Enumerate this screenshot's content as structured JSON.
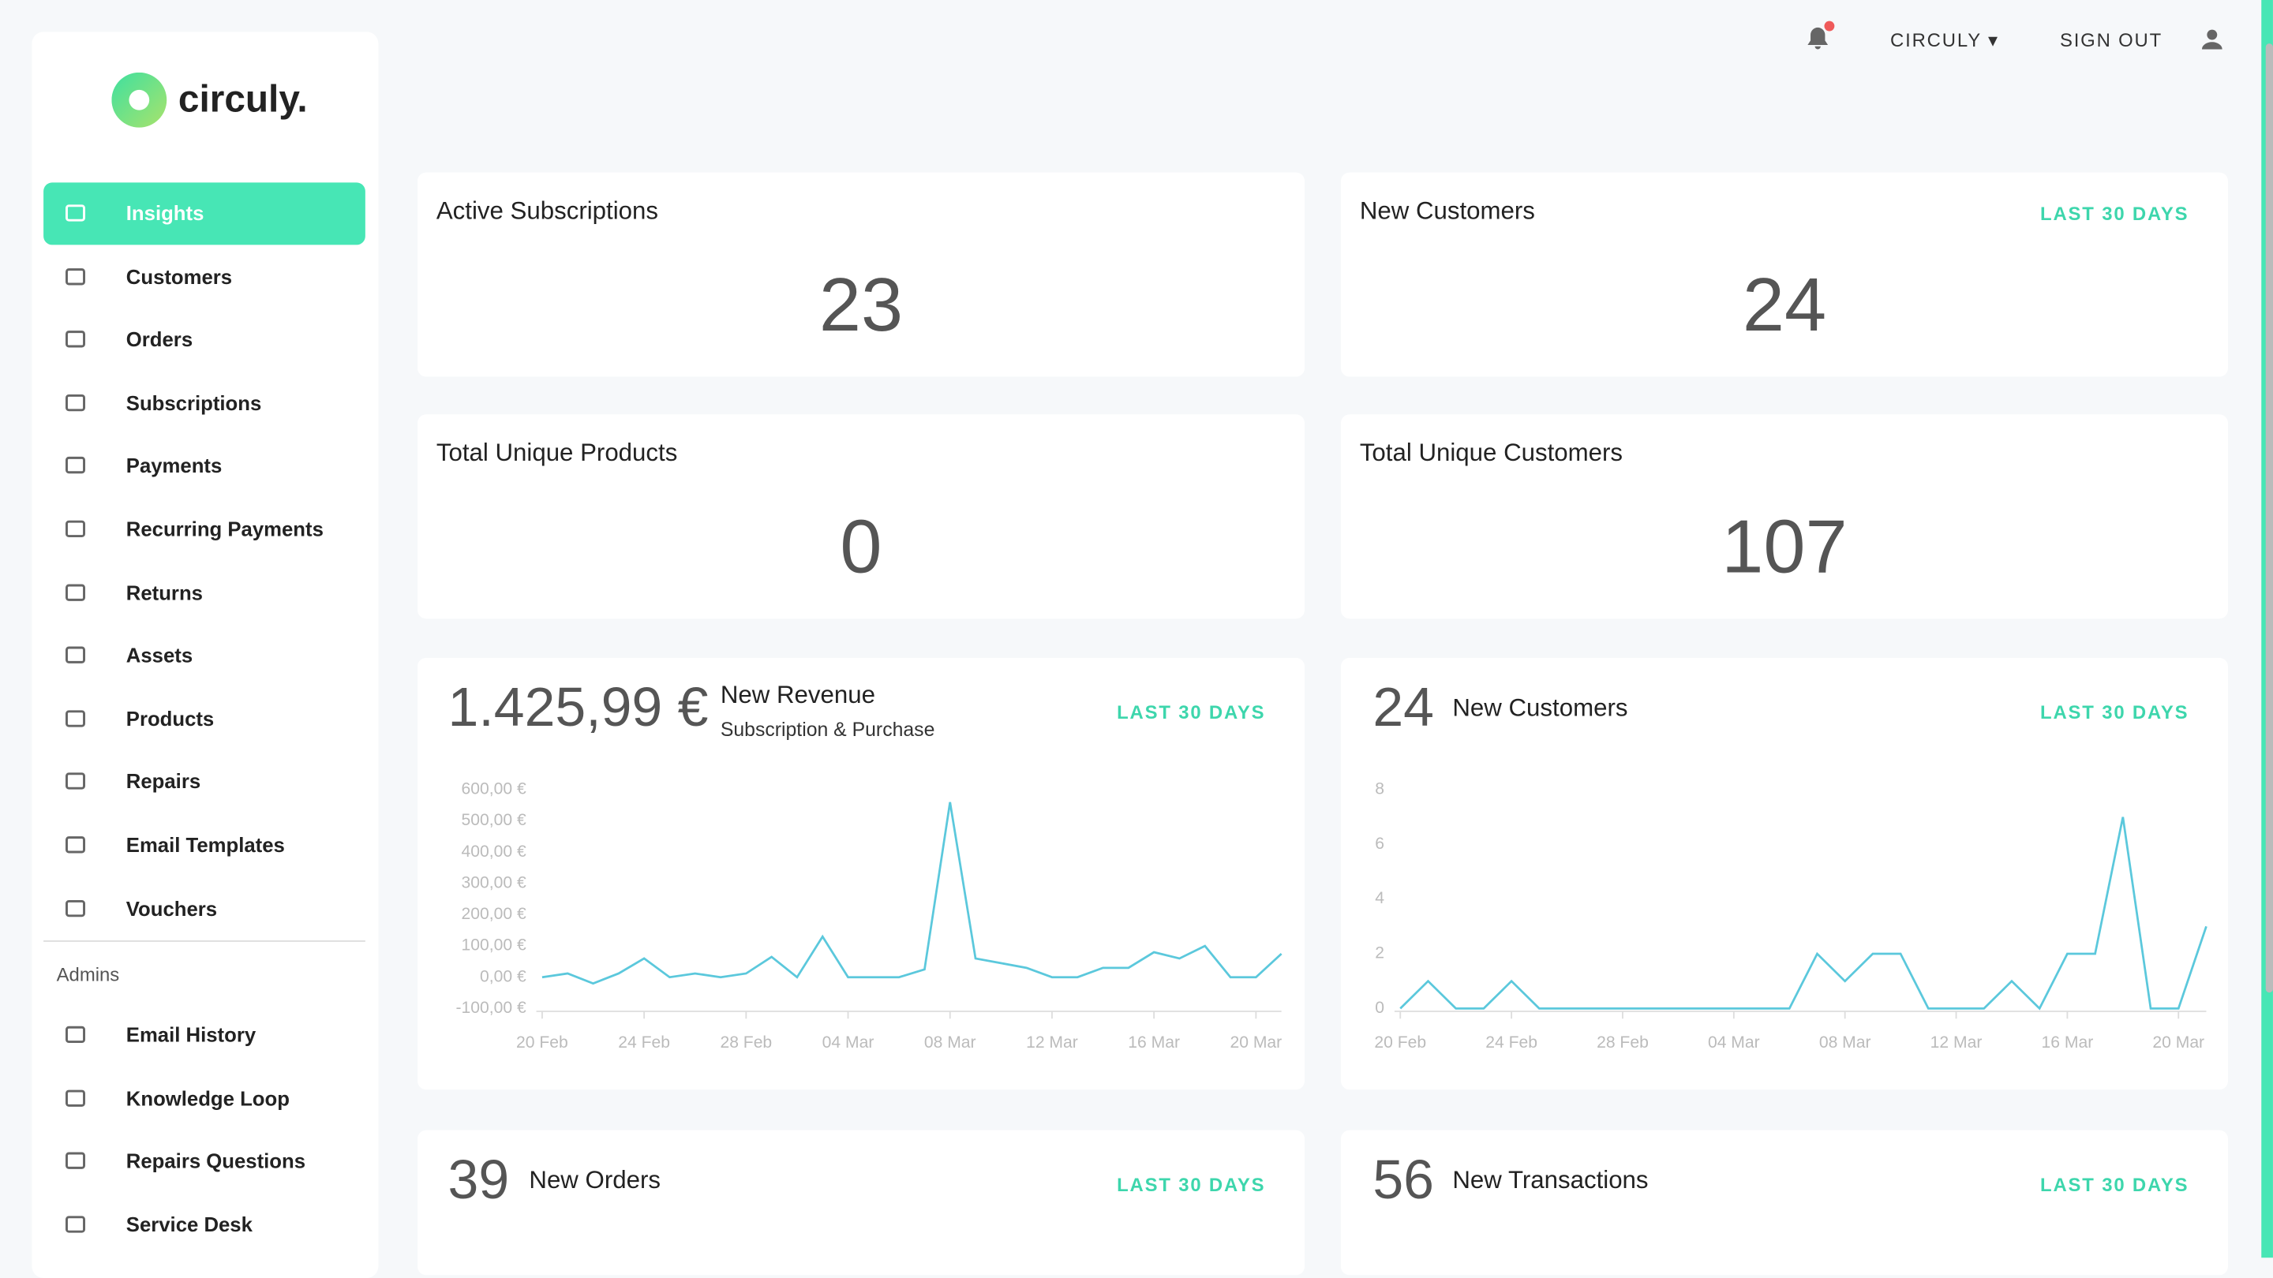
{
  "header": {
    "brand": "CIRCULY",
    "sign_out": "SIGN OUT"
  },
  "sidebar": {
    "logo": "circuly.",
    "nav": [
      "Insights",
      "Customers",
      "Orders",
      "Subscriptions",
      "Payments",
      "Recurring Payments",
      "Returns",
      "Assets",
      "Products",
      "Repairs",
      "Email Templates",
      "Vouchers"
    ],
    "admins_label": "Admins",
    "admin_nav": [
      "Email History",
      "Knowledge Loop",
      "Repairs Questions",
      "Service Desk"
    ]
  },
  "cards": [
    {
      "title": "Active Subscriptions",
      "value": 23
    },
    {
      "title": "New Customers",
      "badge": "LAST 30 DAYS",
      "value": 24
    },
    {
      "title": "Total Unique Products",
      "value": 0
    },
    {
      "title": "Total Unique Customers",
      "value": 107
    }
  ],
  "chart_cards": [
    {
      "stat": "1.425,99 €",
      "title": "New Revenue",
      "subtitle": "Subscription & Purchase",
      "badge": "LAST 30 DAYS"
    },
    {
      "stat": 24,
      "title": "New Customers",
      "badge": "LAST 30 DAYS"
    },
    {
      "stat": 39,
      "title": "New Orders",
      "badge": "LAST 30 DAYS"
    },
    {
      "stat": 56,
      "title": "New Transactions",
      "badge": "LAST 30 DAYS"
    }
  ],
  "chart_data": [
    {
      "type": "line",
      "categories": [
        "20 Feb",
        null,
        null,
        null,
        "24 Feb",
        null,
        null,
        null,
        "28 Feb",
        null,
        null,
        null,
        "04 Mar",
        null,
        null,
        null,
        "08 Mar",
        null,
        null,
        null,
        "12 Mar",
        null,
        null,
        null,
        "16 Mar",
        null,
        null,
        null,
        "20 Mar",
        null
      ],
      "series": [
        {
          "name": "New Revenue",
          "color": "#5bc8dc",
          "values": [
            0,
            12,
            -20,
            12,
            60,
            0,
            12,
            0,
            12,
            65,
            0,
            130,
            0,
            0,
            0,
            25,
            560,
            60,
            45,
            30,
            0,
            0,
            30,
            30,
            80,
            60,
            100,
            0,
            0,
            75
          ]
        }
      ],
      "ylim": [
        -100,
        600
      ],
      "yticks": [
        {
          "value": -100,
          "label": "-100,00 €"
        },
        {
          "value": 0,
          "label": "0,00 €"
        },
        {
          "value": 100,
          "label": "100,00 €"
        },
        {
          "value": 200,
          "label": "200,00 €"
        },
        {
          "value": 300,
          "label": "300,00 €"
        },
        {
          "value": 400,
          "label": "400,00 €"
        },
        {
          "value": 500,
          "label": "500,00 €"
        },
        {
          "value": 600,
          "label": "600,00 €"
        }
      ]
    },
    {
      "type": "line",
      "categories": [
        "20 Feb",
        null,
        null,
        null,
        "24 Feb",
        null,
        null,
        null,
        "28 Feb",
        null,
        null,
        null,
        "04 Mar",
        null,
        null,
        null,
        "08 Mar",
        null,
        null,
        null,
        "12 Mar",
        null,
        null,
        null,
        "16 Mar",
        null,
        null,
        null,
        "20 Mar",
        null
      ],
      "series": [
        {
          "name": "New Customers",
          "color": "#5bc8dc",
          "values": [
            0,
            1,
            0,
            0,
            1,
            0,
            0,
            0,
            0,
            0,
            0,
            0,
            0,
            0,
            0,
            2,
            1,
            2,
            2,
            0,
            0,
            0,
            1,
            0,
            2,
            2,
            7,
            0,
            0,
            3
          ]
        }
      ],
      "ylim": [
        0,
        8
      ],
      "yticks": [
        0,
        2,
        4,
        6,
        8
      ]
    }
  ]
}
